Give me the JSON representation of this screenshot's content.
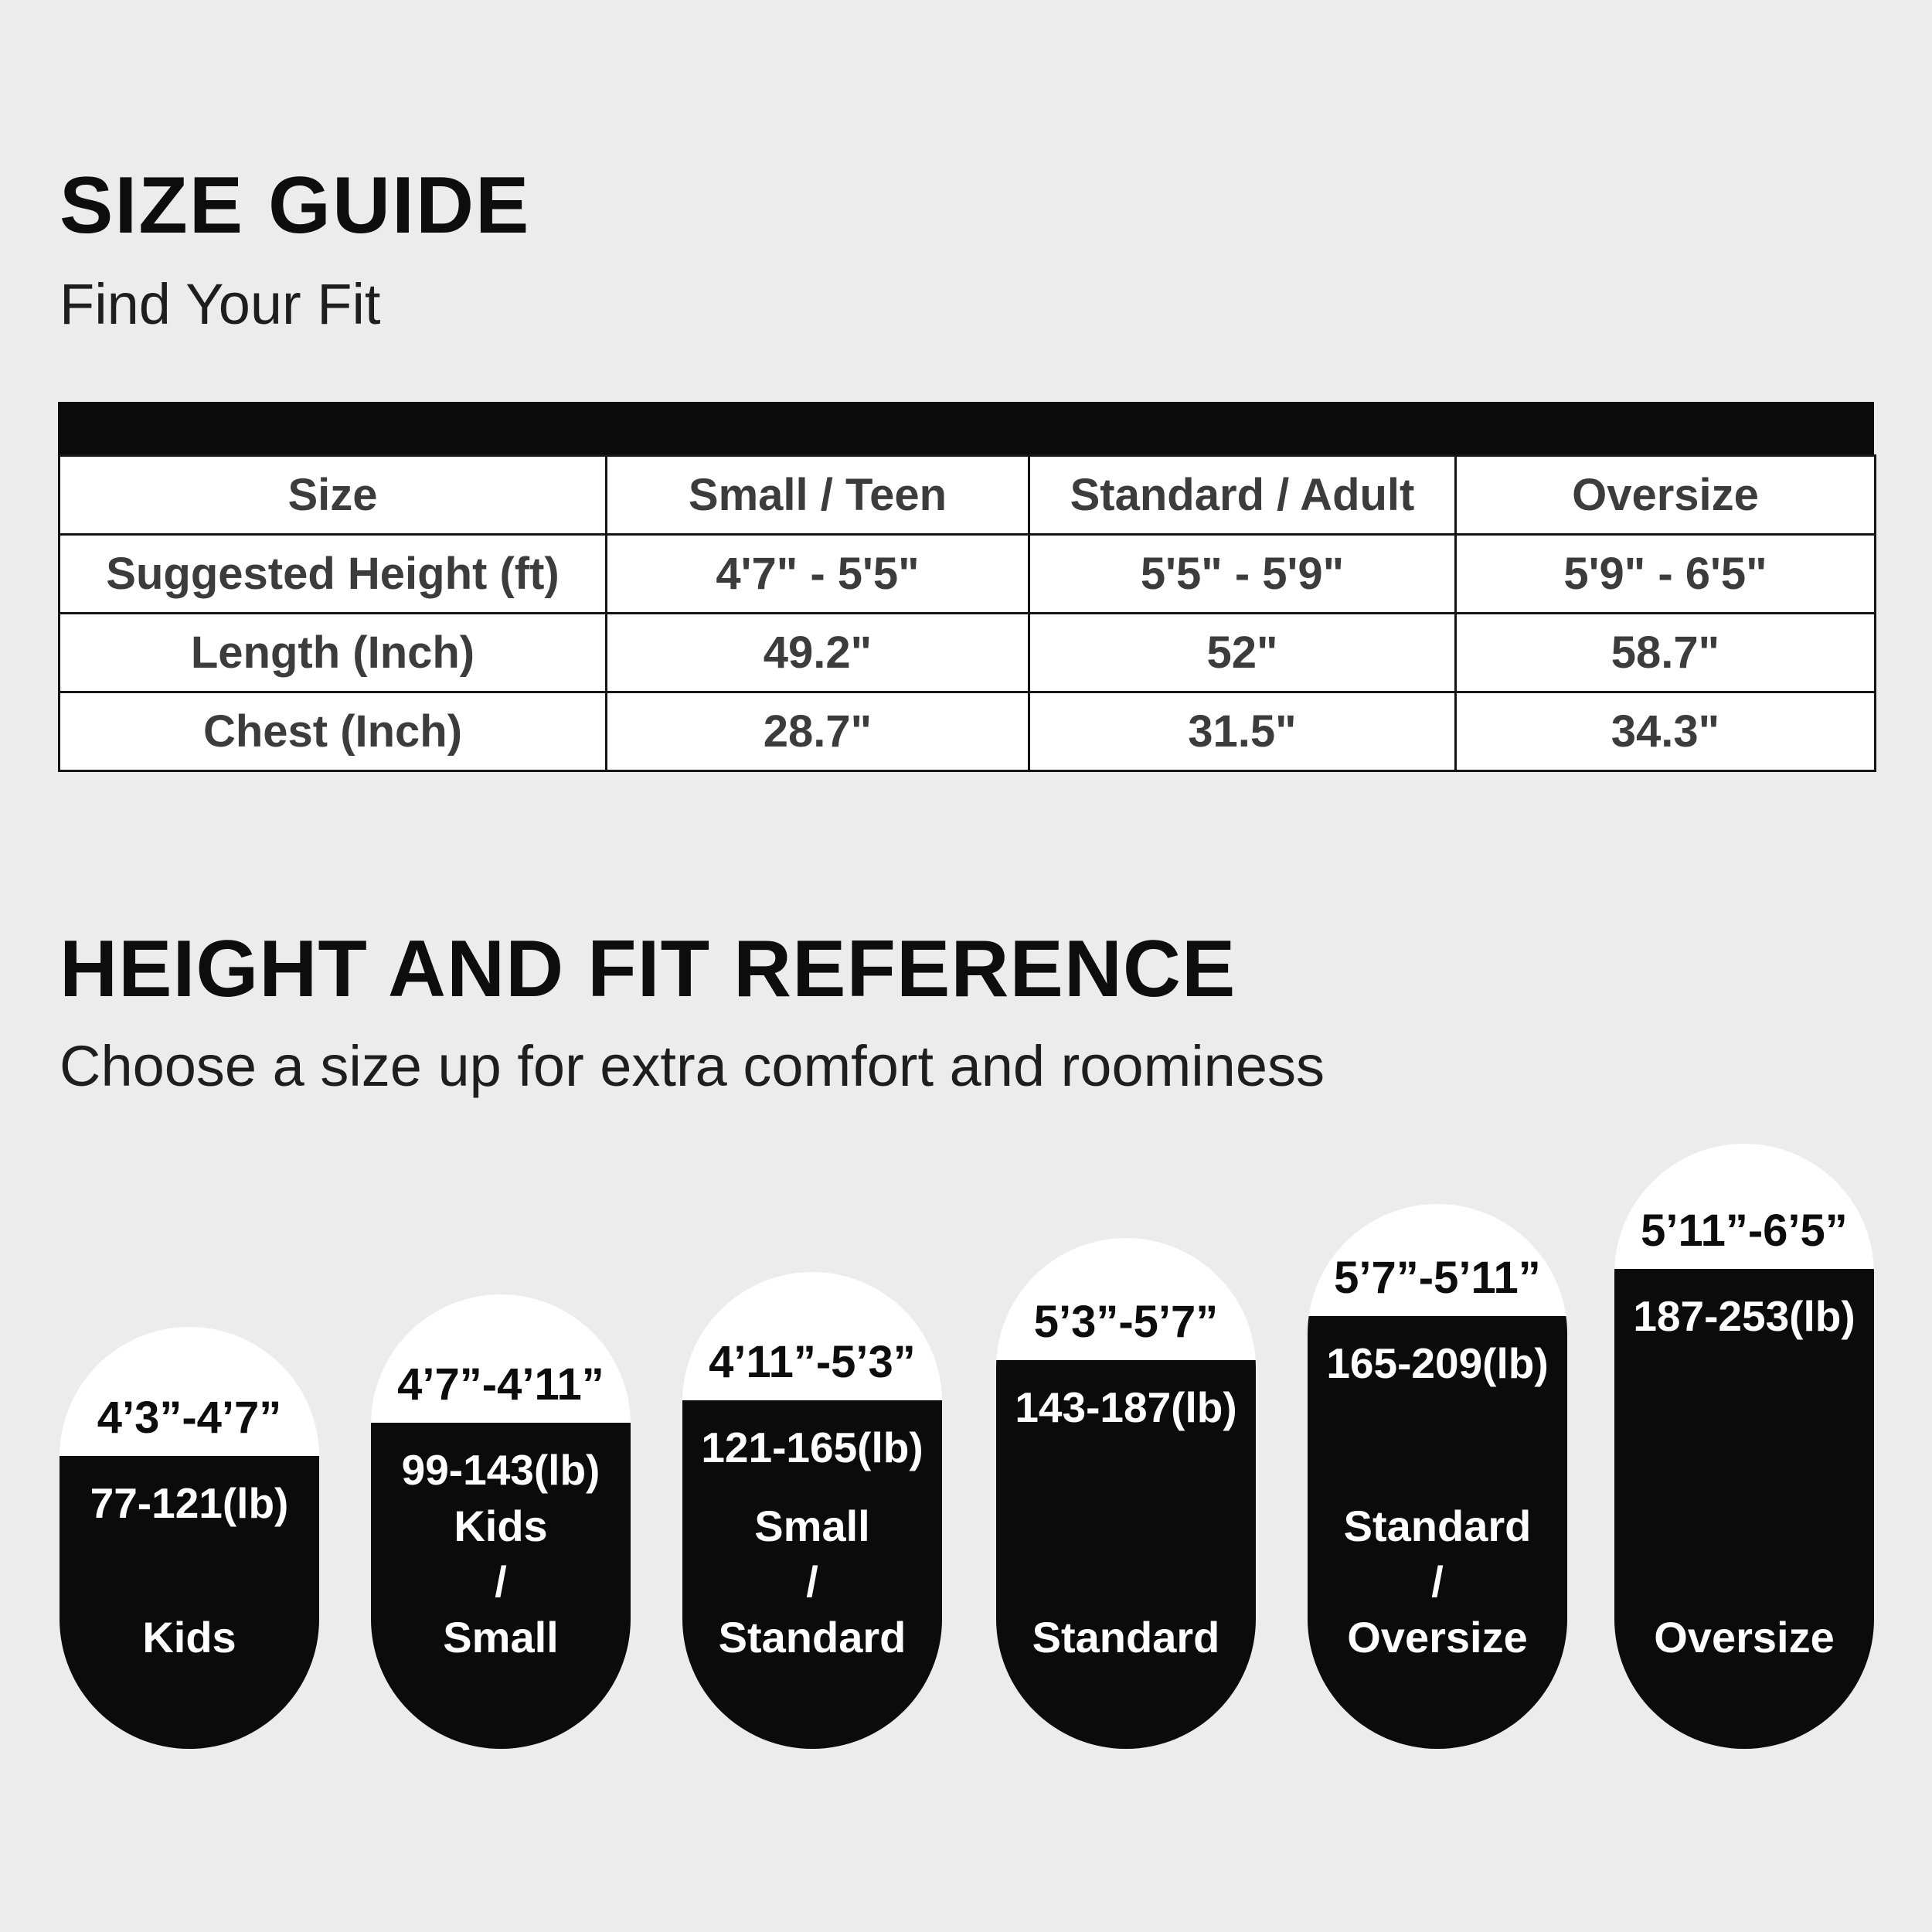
{
  "colors": {
    "background": "#ececec",
    "ink_black": "#0b0b0b",
    "table_text": "#3c3c3c",
    "pill_text_light": "#ffffff"
  },
  "size_guide": {
    "title": "SIZE GUIDE",
    "subtitle": "Find Your Fit"
  },
  "table": {
    "headers": [
      "Size",
      "Small / Teen",
      "Standard / Adult",
      "Oversize"
    ],
    "rows": [
      {
        "label": "Suggested Height (ft)",
        "values": [
          "4'7\" - 5'5\"",
          "5'5\" - 5'9\"",
          "5'9\" - 6'5\""
        ]
      },
      {
        "label": "Length (Inch)",
        "values": [
          "49.2\"",
          "52\"",
          "58.7\""
        ]
      },
      {
        "label": "Chest (Inch)",
        "values": [
          "28.7\"",
          "31.5\"",
          "34.3\""
        ]
      }
    ]
  },
  "fit_reference": {
    "title": "HEIGHT AND FIT REFERENCE",
    "subtitle": "Choose a size up for extra comfort and roominess"
  },
  "pills": [
    {
      "height_range": "4’3”-4’7”",
      "weight_range": "77-121(lb)",
      "size_label": "Kids"
    },
    {
      "height_range": "4’7”-4’11”",
      "weight_range": "99-143(lb)",
      "size_label": "Kids\n/\nSmall"
    },
    {
      "height_range": "4’11”-5’3”",
      "weight_range": "121-165(lb)",
      "size_label": "Small\n/\nStandard"
    },
    {
      "height_range": "5’3”-5’7”",
      "weight_range": "143-187(lb)",
      "size_label": "Standard"
    },
    {
      "height_range": "5’7”-5’11”",
      "weight_range": "165-209(lb)",
      "size_label": "Standard\n/\nOversize"
    },
    {
      "height_range": "5’11”-6’5”",
      "weight_range": "187-253(lb)",
      "size_label": "Oversize"
    }
  ]
}
